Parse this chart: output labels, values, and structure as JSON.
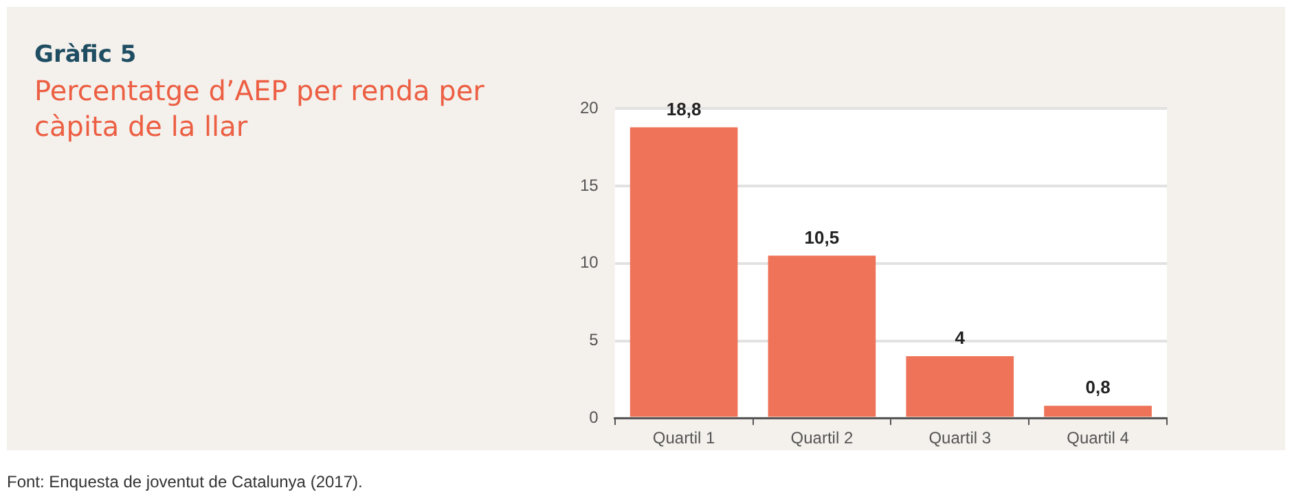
{
  "chart_data": {
    "type": "bar",
    "title": "Gràfic 5",
    "subtitle": "Percentatge d’AEP per renda per càpita de la llar",
    "categories": [
      "Quartil 1",
      "Quartil 2",
      "Quartil 3",
      "Quartil 4"
    ],
    "values": [
      18.8,
      10.5,
      4,
      0.8
    ],
    "value_labels": [
      "18,8",
      "10,5",
      "4",
      "0,8"
    ],
    "color": "#ee7358",
    "ylim": [
      0,
      20
    ],
    "yticks": [
      0,
      5,
      10,
      15,
      20
    ],
    "grid": "y",
    "legend": false,
    "annotations": [
      "Font: Enquesta de joventut de Catalunya (2017)."
    ]
  }
}
